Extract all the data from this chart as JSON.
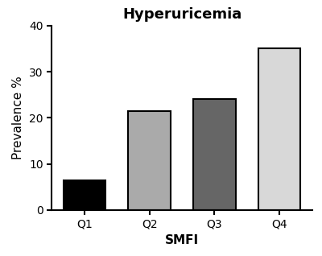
{
  "title": "Hyperuricemia",
  "xlabel": "SMFI",
  "ylabel": "Prevalence %",
  "categories": [
    "Q1",
    "Q2",
    "Q3",
    "Q4"
  ],
  "values": [
    6.5,
    21.5,
    24.0,
    35.0
  ],
  "bar_colors": [
    "#000000",
    "#aaaaaa",
    "#666666",
    "#d8d8d8"
  ],
  "bar_edgecolors": [
    "#000000",
    "#000000",
    "#000000",
    "#000000"
  ],
  "bar_linewidth": 1.5,
  "ylim": [
    0,
    40
  ],
  "yticks": [
    0,
    10,
    20,
    30,
    40
  ],
  "title_fontsize": 13,
  "label_fontsize": 11,
  "tick_fontsize": 10,
  "bar_width": 0.65,
  "background_color": "#ffffff"
}
